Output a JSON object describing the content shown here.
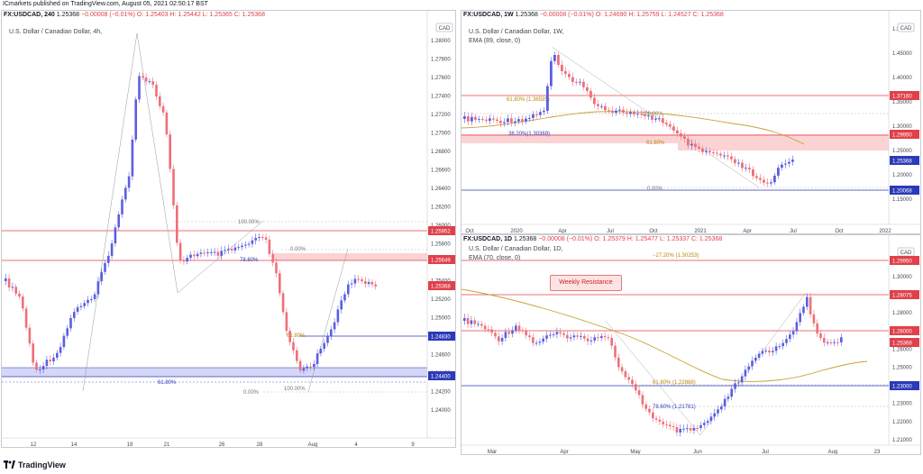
{
  "header": {
    "publisher": "ICmarkets published on TradingView.com, August 05, 2021 02:50:17 BST"
  },
  "charts": {
    "left": {
      "legend_symbol": "FX:USDCAD, 240",
      "legend_price": "1.25368",
      "legend_change": "−0.00008 (−0.01%)",
      "legend_ohlc": "O: 1.25403  H: 1.25442  L: 1.25365  C: 1.25368",
      "title": "U.S. Dollar / Canadian Dollar, 4h,",
      "currency": "CAD",
      "y_ticks": [
        "1.28000",
        "1.27800",
        "1.27600",
        "1.27400",
        "1.27200",
        "1.27000",
        "1.26800",
        "1.26600",
        "1.26400",
        "1.26200",
        "1.26000",
        "1.25800",
        "1.25600",
        "1.25400",
        "1.25200",
        "1.25000",
        "1.24800",
        "1.24600",
        "1.24400",
        "1.24200",
        "1.24000"
      ],
      "x_ticks": [
        "12",
        "14",
        "19",
        "21",
        "26",
        "28",
        "Aug",
        "4",
        "9"
      ],
      "price_tags": {
        "r1": "1.25952",
        "r2": "1.25649",
        "cur": "1.25368",
        "s1": "1.24830",
        "s2": "1.24400"
      },
      "fib_labels": {
        "f100": "100.00%",
        "f0": "0.00%",
        "f786": "78.60%",
        "f618a": "61.80%",
        "f618b": "61.80%",
        "f100b": "100.00%",
        "f0b": "0.00%"
      }
    },
    "top_right": {
      "legend_symbol": "FX:USDCAD, 1W",
      "legend_price": "1.25368",
      "legend_change": "−0.00008 (−0.01%)",
      "legend_ohlc": "O: 1.24690  H: 1.25759  L: 1.24527  C: 1.25368",
      "title": "U.S. Dollar / Canadian Dollar, 1W,",
      "indicator": "EMA (89, close, 0)",
      "currency": "CAD",
      "y_ticks": [
        "1.50000",
        "1.45000",
        "1.40000",
        "1.35000",
        "1.30000",
        "1.25000",
        "1.20000",
        "1.15000"
      ],
      "x_ticks": [
        "Oct",
        "2020",
        "Apr",
        "Jul",
        "Oct",
        "2021",
        "Apr",
        "Jul",
        "Oct",
        "2022"
      ],
      "price_tags": {
        "r1": "1.37160",
        "r2": "1.29950",
        "cur": "1.25368",
        "s1": "1.20068"
      },
      "fib_labels": {
        "f618": "61.80% (1.36595)",
        "f100": "100.00%",
        "f382": "38.20%(1.30369)",
        "f618b": "61.80%",
        "f0": "0.00%"
      }
    },
    "bottom_right": {
      "legend_symbol": "FX:USDCAD, 1D",
      "legend_price": "1.25368",
      "legend_change": "−0.00008 (−0.01%)",
      "legend_ohlc": "O: 1.25379  H: 1.25477  L: 1.25337  C: 1.25368",
      "title": "U.S. Dollar / Canadian Dollar, 1D,",
      "indicator": "EMA (70, close, 0)",
      "currency": "CAD",
      "y_ticks": [
        "1.30000",
        "1.29000",
        "1.28000",
        "1.27000",
        "1.26000",
        "1.25000",
        "1.24000",
        "1.23000",
        "1.22000",
        "1.21000",
        "1.20000"
      ],
      "x_ticks": [
        "Mar",
        "Apr",
        "May",
        "Jun",
        "Jul",
        "Aug",
        "23"
      ],
      "price_tags": {
        "r0": "1.29950",
        "r1": "1.28075",
        "r2": "1.26000",
        "cur": "1.25368",
        "s1": "1.23000"
      },
      "fib_labels": {
        "f272": "−27.20% (1.30253)",
        "f618": "61.80% (1.22888)",
        "f786": "78.60% (1.21781)"
      },
      "callout": "Weekly Resistance"
    }
  },
  "footer": {
    "brand": "TradingView"
  },
  "colors": {
    "bull": "#5b5fe0",
    "bear": "#ef6f7a",
    "resistance": "#e0404a",
    "support": "#2b3ab8",
    "ema": "#c8a032"
  }
}
